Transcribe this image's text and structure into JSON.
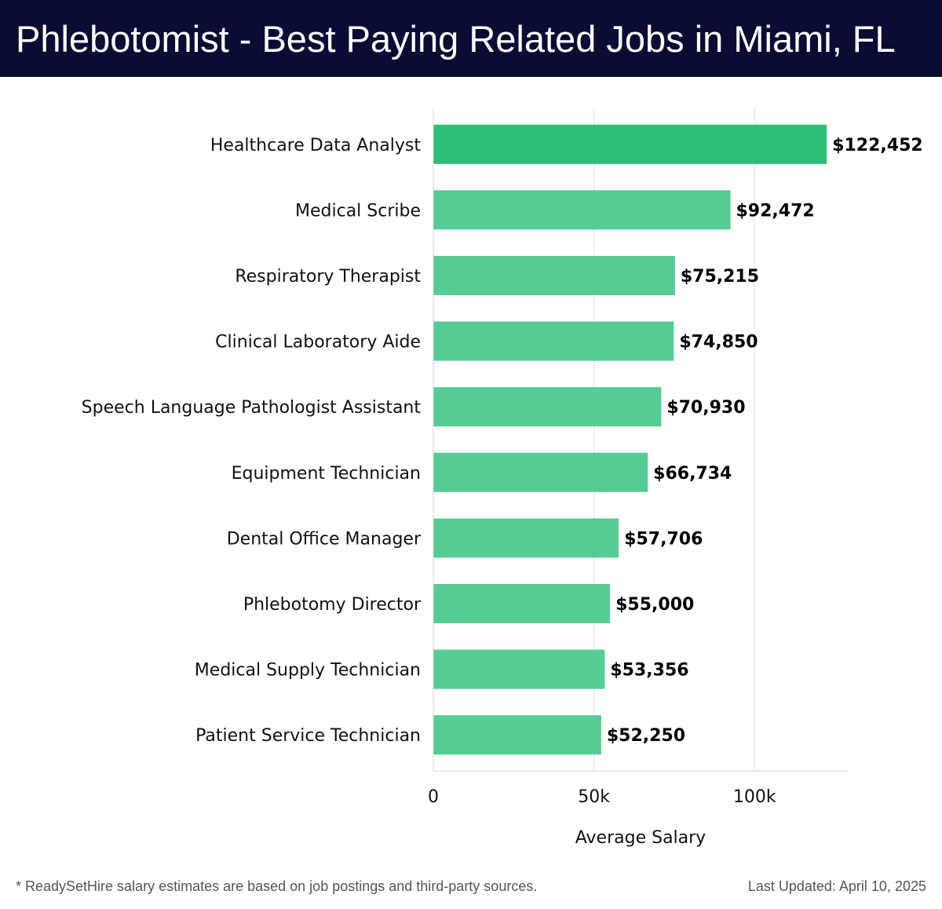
{
  "header": {
    "title": "Phlebotomist - Best Paying Related Jobs in Miami, FL"
  },
  "chart_data": {
    "type": "bar",
    "orientation": "horizontal",
    "categories": [
      "Healthcare Data Analyst",
      "Medical Scribe",
      "Respiratory Therapist",
      "Clinical Laboratory Aide",
      "Speech Language Pathologist Assistant",
      "Equipment Technician",
      "Dental Office Manager",
      "Phlebotomy Director",
      "Medical Supply Technician",
      "Patient Service Technician"
    ],
    "values": [
      122452,
      92472,
      75215,
      74850,
      70930,
      66734,
      57706,
      55000,
      53356,
      52250
    ],
    "value_labels": [
      "$122,452",
      "$92,472",
      "$75,215",
      "$74,850",
      "$70,930",
      "$66,734",
      "$57,706",
      "$55,000",
      "$53,356",
      "$52,250"
    ],
    "xlabel": "Average Salary",
    "ylabel": "",
    "xlim": [
      0,
      129000
    ],
    "xticks": [
      0,
      50000,
      100000
    ],
    "xtick_labels": [
      "0",
      "50k",
      "100k"
    ],
    "grid": "vertical",
    "bar_color_top": "#2bbf77",
    "bar_color": "#55cc94"
  },
  "footer": {
    "note": "* ReadySetHire salary estimates are based on job postings and third-party sources.",
    "updated": "Last Updated: April 10, 2025"
  }
}
